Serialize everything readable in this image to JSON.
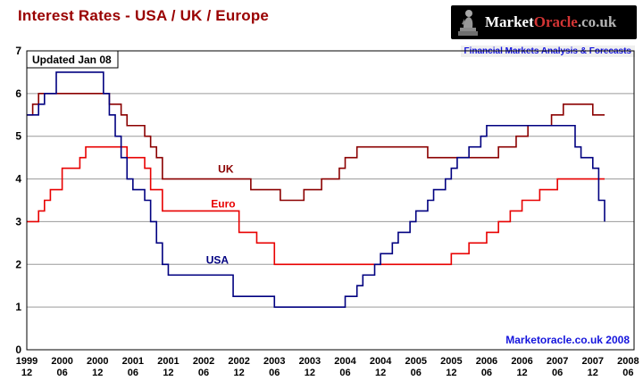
{
  "header": {
    "title": "Interest Rates - USA / UK / Europe",
    "title_color": "#990000",
    "logo": {
      "market": "Market",
      "oracle": "Oracle",
      "suffix": ".co.uk",
      "market_color": "#ffffff",
      "oracle_color": "#d43535",
      "suffix_color": "#b5b5b5",
      "bg": "#000000"
    },
    "tagline": {
      "text": "Financial Markets Analysis & Forecasts",
      "color": "#1515dd"
    }
  },
  "chart_data": {
    "type": "line",
    "title": "Interest Rates - USA / UK / Europe",
    "annotation": "Updated Jan 08",
    "watermark": "Marketoracle.co.uk 2008",
    "watermark_color": "#1515dd",
    "grid_color": "#9a9a9a",
    "ylim": [
      0,
      7
    ],
    "yticks": [
      "0",
      "1",
      "2",
      "3",
      "4",
      "5",
      "6",
      "7"
    ],
    "x_start": [
      1999,
      12
    ],
    "x_end": [
      2008,
      7
    ],
    "xticks": [
      [
        "1999",
        "12"
      ],
      [
        "2000",
        "06"
      ],
      [
        "2000",
        "12"
      ],
      [
        "2001",
        "06"
      ],
      [
        "2001",
        "12"
      ],
      [
        "2002",
        "06"
      ],
      [
        "2002",
        "12"
      ],
      [
        "2003",
        "06"
      ],
      [
        "2003",
        "12"
      ],
      [
        "2004",
        "06"
      ],
      [
        "2004",
        "12"
      ],
      [
        "2005",
        "06"
      ],
      [
        "2005",
        "12"
      ],
      [
        "2006",
        "06"
      ],
      [
        "2006",
        "12"
      ],
      [
        "2007",
        "06"
      ],
      [
        "2007",
        "12"
      ],
      [
        "2008",
        "06"
      ]
    ],
    "series": [
      {
        "name": "UK",
        "color": "#8b0000",
        "label": {
          "t": 2002.62,
          "v": 4.15
        },
        "end": [
          2008,
          2
        ],
        "points": [
          [
            1999,
            12,
            5.5
          ],
          [
            2000,
            1,
            5.75
          ],
          [
            2000,
            2,
            6.0
          ],
          [
            2001,
            2,
            5.75
          ],
          [
            2001,
            4,
            5.5
          ],
          [
            2001,
            5,
            5.25
          ],
          [
            2001,
            8,
            5.0
          ],
          [
            2001,
            9,
            4.75
          ],
          [
            2001,
            10,
            4.5
          ],
          [
            2001,
            11,
            4.0
          ],
          [
            2003,
            2,
            3.75
          ],
          [
            2003,
            7,
            3.5
          ],
          [
            2003,
            11,
            3.75
          ],
          [
            2004,
            2,
            4.0
          ],
          [
            2004,
            5,
            4.25
          ],
          [
            2004,
            6,
            4.5
          ],
          [
            2004,
            8,
            4.75
          ],
          [
            2005,
            8,
            4.5
          ],
          [
            2006,
            8,
            4.75
          ],
          [
            2006,
            11,
            5.0
          ],
          [
            2007,
            1,
            5.25
          ],
          [
            2007,
            5,
            5.5
          ],
          [
            2007,
            7,
            5.75
          ],
          [
            2007,
            12,
            5.5
          ]
        ]
      },
      {
        "name": "Euro",
        "color": "#e80000",
        "label": {
          "t": 2002.52,
          "v": 3.33
        },
        "end": [
          2008,
          2
        ],
        "points": [
          [
            1999,
            12,
            3.0
          ],
          [
            2000,
            2,
            3.25
          ],
          [
            2000,
            3,
            3.5
          ],
          [
            2000,
            4,
            3.75
          ],
          [
            2000,
            6,
            4.25
          ],
          [
            2000,
            9,
            4.5
          ],
          [
            2000,
            10,
            4.75
          ],
          [
            2001,
            5,
            4.5
          ],
          [
            2001,
            8,
            4.25
          ],
          [
            2001,
            9,
            3.75
          ],
          [
            2001,
            11,
            3.25
          ],
          [
            2002,
            12,
            2.75
          ],
          [
            2003,
            3,
            2.5
          ],
          [
            2003,
            6,
            2.0
          ],
          [
            2005,
            12,
            2.25
          ],
          [
            2006,
            3,
            2.5
          ],
          [
            2006,
            6,
            2.75
          ],
          [
            2006,
            8,
            3.0
          ],
          [
            2006,
            10,
            3.25
          ],
          [
            2006,
            12,
            3.5
          ],
          [
            2007,
            3,
            3.75
          ],
          [
            2007,
            6,
            4.0
          ]
        ]
      },
      {
        "name": "USA",
        "color": "#000080",
        "label": {
          "t": 2002.45,
          "v": 2.02
        },
        "end": [
          2008,
          2
        ],
        "points": [
          [
            1999,
            12,
            5.5
          ],
          [
            2000,
            2,
            5.75
          ],
          [
            2000,
            3,
            6.0
          ],
          [
            2000,
            5,
            6.5
          ],
          [
            2001,
            1,
            6.0
          ],
          [
            2001,
            2,
            5.5
          ],
          [
            2001,
            3,
            5.0
          ],
          [
            2001,
            4,
            4.5
          ],
          [
            2001,
            5,
            4.0
          ],
          [
            2001,
            6,
            3.75
          ],
          [
            2001,
            8,
            3.5
          ],
          [
            2001,
            9,
            3.0
          ],
          [
            2001,
            10,
            2.5
          ],
          [
            2001,
            11,
            2.0
          ],
          [
            2001,
            12,
            1.75
          ],
          [
            2002,
            11,
            1.25
          ],
          [
            2003,
            6,
            1.0
          ],
          [
            2004,
            6,
            1.25
          ],
          [
            2004,
            8,
            1.5
          ],
          [
            2004,
            9,
            1.75
          ],
          [
            2004,
            11,
            2.0
          ],
          [
            2004,
            12,
            2.25
          ],
          [
            2005,
            2,
            2.5
          ],
          [
            2005,
            3,
            2.75
          ],
          [
            2005,
            5,
            3.0
          ],
          [
            2005,
            6,
            3.25
          ],
          [
            2005,
            8,
            3.5
          ],
          [
            2005,
            9,
            3.75
          ],
          [
            2005,
            11,
            4.0
          ],
          [
            2005,
            12,
            4.25
          ],
          [
            2006,
            1,
            4.5
          ],
          [
            2006,
            3,
            4.75
          ],
          [
            2006,
            5,
            5.0
          ],
          [
            2006,
            6,
            5.25
          ],
          [
            2007,
            9,
            4.75
          ],
          [
            2007,
            10,
            4.5
          ],
          [
            2007,
            12,
            4.25
          ],
          [
            2008,
            1,
            3.5
          ],
          [
            2008,
            2,
            3.0
          ]
        ]
      }
    ]
  }
}
